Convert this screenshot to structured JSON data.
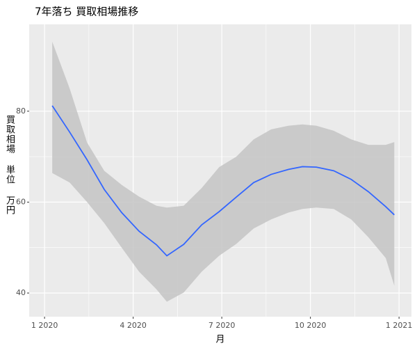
{
  "chart_data": {
    "type": "line",
    "title": "7年落ち 買取相場推移",
    "x_label": "月",
    "y_label": "買取相場 単位 万円",
    "x": [
      0.26,
      0.85,
      1.44,
      2.02,
      2.61,
      3.2,
      3.79,
      4.14,
      4.71,
      5.32,
      5.91,
      6.49,
      7.08,
      7.67,
      8.26,
      8.73,
      9.2,
      9.79,
      10.38,
      10.96,
      11.55,
      11.84
    ],
    "series": [
      {
        "color": "#3366ff",
        "band_color": "#c4c4c4",
        "values": [
          81.2,
          75.4,
          69.3,
          62.8,
          57.7,
          53.6,
          50.6,
          48.2,
          50.7,
          55.0,
          57.9,
          61.1,
          64.3,
          66.1,
          67.2,
          67.8,
          67.7,
          66.9,
          65.0,
          62.3,
          59.0,
          57.2
        ],
        "upper": [
          95.3,
          85.0,
          73.1,
          66.9,
          63.8,
          61.2,
          59.2,
          58.8,
          59.2,
          63.1,
          67.7,
          70.0,
          73.8,
          76.0,
          76.8,
          77.1,
          76.8,
          75.7,
          73.8,
          72.6,
          72.6,
          73.2
        ],
        "lower": [
          66.4,
          64.3,
          60.0,
          55.4,
          50.0,
          44.7,
          40.8,
          38.1,
          40.1,
          44.7,
          48.2,
          50.8,
          54.2,
          56.2,
          57.7,
          58.5,
          58.8,
          58.5,
          56.2,
          52.3,
          47.7,
          41.6
        ]
      }
    ],
    "xlim": [
      -0.52,
      12.42
    ],
    "xticks": [
      {
        "value": 0,
        "label": "1 2020"
      },
      {
        "value": 3,
        "label": "4 2020"
      },
      {
        "value": 6,
        "label": "7 2020"
      },
      {
        "value": 9,
        "label": "10 2020"
      },
      {
        "value": 12,
        "label": "1 2021"
      }
    ],
    "ylim": [
      34.8,
      99.1
    ],
    "yticks": [
      40,
      60,
      80
    ],
    "grid": true
  }
}
